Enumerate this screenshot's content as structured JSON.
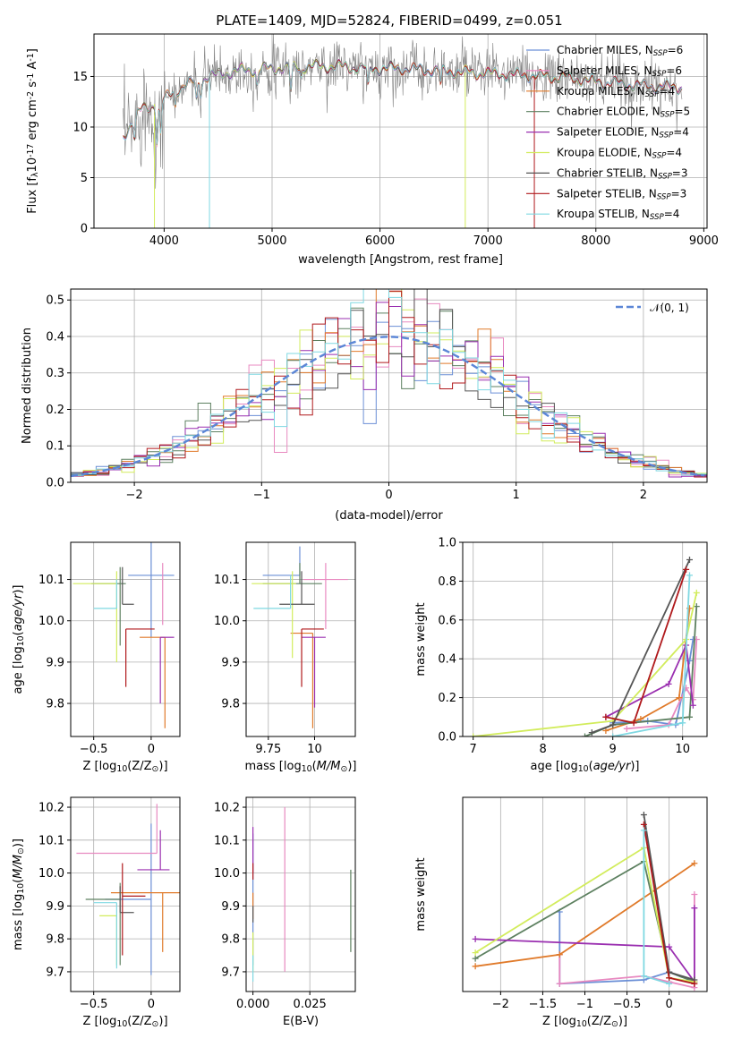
{
  "title": "PLATE=1409, MJD=52824, FIBERID=0499, z=0.051",
  "series": [
    {
      "name": "Chabrier MILES, N$_{SSP}$=6",
      "color": "#6b8fd6"
    },
    {
      "name": "Salpeter MILES, N$_{SSP}$=6",
      "color": "#e889c0"
    },
    {
      "name": "Kroupa MILES, N$_{SSP}$=4",
      "color": "#e07a2a"
    },
    {
      "name": "Chabrier ELODIE, N$_{SSP}$=5",
      "color": "#5d8060"
    },
    {
      "name": "Salpeter ELODIE, N$_{SSP}$=4",
      "color": "#9a2fb0"
    },
    {
      "name": "Kroupa ELODIE, N$_{SSP}$=4",
      "color": "#d2ec5c"
    },
    {
      "name": "Chabrier STELIB, N$_{SSP}$=3",
      "color": "#555555"
    },
    {
      "name": "Salpeter STELIB, N$_{SSP}$=3",
      "color": "#b0191c"
    },
    {
      "name": "Kroupa STELIB, N$_{SSP}$=4",
      "color": "#7fd8e2"
    }
  ],
  "chart_data": [
    {
      "id": "spectrum",
      "type": "line",
      "xlabel": "wavelength [Angstrom, rest frame]",
      "ylabel": "Flux [f$_\\lambda$10$^{-17}$ erg cm$^{-2}$ s$^{-1}$ A$^{-1}$]",
      "xlim": [
        3350,
        9030
      ],
      "ylim": [
        0,
        19.2
      ],
      "xticks": [
        4000,
        5000,
        6000,
        7000,
        8000,
        9000
      ],
      "yticks": [
        0,
        5,
        10,
        15
      ],
      "data_color": "#808080",
      "continuum_knots": [
        [
          3620,
          9
        ],
        [
          3700,
          10.5
        ],
        [
          3800,
          11.8
        ],
        [
          3900,
          12.2
        ],
        [
          4000,
          12.8
        ],
        [
          4100,
          13.6
        ],
        [
          4300,
          14.6
        ],
        [
          4500,
          15.2
        ],
        [
          4700,
          15.6
        ],
        [
          5000,
          15.8
        ],
        [
          5300,
          16.0
        ],
        [
          5600,
          16.0
        ],
        [
          5900,
          15.8
        ],
        [
          6200,
          15.8
        ],
        [
          6500,
          15.6
        ],
        [
          6800,
          15.4
        ],
        [
          7000,
          15.3
        ],
        [
          7400,
          15.1
        ],
        [
          7700,
          14.9
        ],
        [
          8000,
          14.5
        ],
        [
          8300,
          14.2
        ],
        [
          8600,
          14.0
        ],
        [
          8800,
          13.9
        ]
      ]
    },
    {
      "id": "residuals",
      "type": "histogram",
      "xlabel": "(data-model)/error",
      "ylabel": "Normed distribution",
      "xlim": [
        -2.5,
        2.5
      ],
      "ylim": [
        0,
        0.53
      ],
      "xticks": [
        -2,
        -1,
        0,
        1,
        2
      ],
      "yticks": [
        0.0,
        0.1,
        0.2,
        0.3,
        0.4,
        0.5
      ],
      "legend": "$\\mathcal{N}(0,1)$",
      "bin_width": 0.1,
      "model_color": "#5b86d6"
    },
    {
      "id": "age_vs_Z",
      "type": "scatter",
      "xlabel": "Z [log$_{10}$(Z/Z$_\\odot$)]",
      "ylabel": "age  [log$_{10}$($age/yr$)]",
      "xlim": [
        -0.7,
        0.25
      ],
      "ylim": [
        9.72,
        10.19
      ],
      "xticks": [
        -0.5,
        0.0
      ],
      "yticks": [
        9.8,
        9.9,
        10.0,
        10.1
      ],
      "points": [
        {
          "x": 0.0,
          "y": 10.11,
          "xerr": [
            0.2,
            0.2
          ],
          "yerr": [
            0.15,
            0.08
          ]
        },
        {
          "x": 0.1,
          "y": 10.09,
          "xerr": [
            0.0,
            0.0
          ],
          "yerr": [
            0.1,
            0.05
          ]
        },
        {
          "x": 0.12,
          "y": 9.96,
          "xerr": [
            0.22,
            0.0
          ],
          "yerr": [
            0.22,
            0.0
          ]
        },
        {
          "x": -0.27,
          "y": 10.09,
          "xerr": [
            0.25,
            0.05
          ],
          "yerr": [
            0.15,
            0.04
          ]
        },
        {
          "x": 0.08,
          "y": 9.96,
          "xerr": [
            0.0,
            0.12
          ],
          "yerr": [
            0.16,
            0.0
          ]
        },
        {
          "x": -0.3,
          "y": 10.09,
          "xerr": [
            0.38,
            0.0
          ],
          "yerr": [
            0.19,
            0.03
          ]
        },
        {
          "x": -0.25,
          "y": 10.04,
          "xerr": [
            0.0,
            0.1
          ],
          "yerr": [
            0.0,
            0.09
          ]
        },
        {
          "x": -0.22,
          "y": 9.98,
          "xerr": [
            0.0,
            0.25
          ],
          "yerr": [
            0.14,
            0.0
          ]
        },
        {
          "x": -0.3,
          "y": 10.03,
          "xerr": [
            0.2,
            0.0
          ],
          "yerr": [
            0.0,
            0.07
          ]
        }
      ]
    },
    {
      "id": "age_vs_mass",
      "type": "scatter",
      "xlabel": "mass [log$_{10}$($M/M_\\odot$)]",
      "ylabel": "",
      "xlim": [
        9.63,
        10.22
      ],
      "ylim": [
        9.72,
        10.19
      ],
      "xticks": [
        9.75,
        10.0
      ],
      "yticks": [
        9.8,
        9.9,
        10.0,
        10.1
      ],
      "points": [
        {
          "x": 9.92,
          "y": 10.11,
          "xerr": [
            0.2,
            0.0
          ],
          "yerr": [
            0.0,
            0.07
          ]
        },
        {
          "x": 10.06,
          "y": 10.1,
          "xerr": [
            0.12,
            0.12
          ],
          "yerr": [
            0.12,
            0.04
          ]
        },
        {
          "x": 9.99,
          "y": 9.97,
          "xerr": [
            0.12,
            0.0
          ],
          "yerr": [
            0.23,
            0.0
          ]
        },
        {
          "x": 9.92,
          "y": 10.09,
          "xerr": [
            0.2,
            0.12
          ],
          "yerr": [
            0.0,
            0.05
          ]
        },
        {
          "x": 10.0,
          "y": 9.96,
          "xerr": [
            0.07,
            0.06
          ],
          "yerr": [
            0.17,
            0.0
          ]
        },
        {
          "x": 9.88,
          "y": 10.09,
          "xerr": [
            0.22,
            0.02
          ],
          "yerr": [
            0.18,
            0.03
          ]
        },
        {
          "x": 9.93,
          "y": 10.04,
          "xerr": [
            0.12,
            0.07
          ],
          "yerr": [
            0.0,
            0.08
          ]
        },
        {
          "x": 9.93,
          "y": 9.98,
          "xerr": [
            0.0,
            0.12
          ],
          "yerr": [
            0.14,
            0.0
          ]
        },
        {
          "x": 9.87,
          "y": 10.03,
          "xerr": [
            0.2,
            0.0
          ],
          "yerr": [
            0.0,
            0.08
          ]
        }
      ]
    },
    {
      "id": "weight_vs_age",
      "type": "line",
      "xlabel": "age  [log$_{10}$($age/yr$)]",
      "ylabel": "mass weight",
      "xlim": [
        6.85,
        10.35
      ],
      "ylim": [
        0,
        1.0
      ],
      "xticks": [
        7,
        8,
        9,
        10
      ],
      "yticks": [
        0.0,
        0.2,
        0.4,
        0.6,
        0.8,
        1.0
      ],
      "series": [
        [
          [
            9.0,
            0.07
          ],
          [
            9.5,
            0.08
          ],
          [
            9.9,
            0.06
          ],
          [
            10.1,
            0.39
          ],
          [
            10.15,
            0.5
          ]
        ],
        [
          [
            9.2,
            0.04
          ],
          [
            9.8,
            0.06
          ],
          [
            10.05,
            0.25
          ],
          [
            10.15,
            0.19
          ],
          [
            10.2,
            0.5
          ]
        ],
        [
          [
            8.9,
            0.03
          ],
          [
            9.4,
            0.09
          ],
          [
            9.95,
            0.2
          ],
          [
            10.1,
            0.66
          ]
        ],
        [
          [
            8.6,
            0.0
          ],
          [
            9.0,
            0.06
          ],
          [
            10.1,
            0.1
          ],
          [
            10.2,
            0.67
          ]
        ],
        [
          [
            8.9,
            0.1
          ],
          [
            9.8,
            0.27
          ],
          [
            10.05,
            0.47
          ],
          [
            10.15,
            0.16
          ]
        ],
        [
          [
            7.0,
            0.0
          ],
          [
            9.0,
            0.08
          ],
          [
            10.05,
            0.5
          ],
          [
            10.2,
            0.74
          ]
        ],
        [
          [
            8.7,
            0.02
          ],
          [
            9.0,
            0.06
          ],
          [
            10.1,
            0.91
          ]
        ],
        [
          [
            8.9,
            0.1
          ],
          [
            9.3,
            0.07
          ],
          [
            10.05,
            0.86
          ]
        ],
        [
          [
            9.0,
            0.0
          ],
          [
            10.0,
            0.07
          ],
          [
            10.1,
            0.83
          ]
        ]
      ]
    },
    {
      "id": "mass_vs_Z",
      "type": "scatter",
      "xlabel": "Z [log$_{10}$(Z/Z$_\\odot$)]",
      "ylabel": "mass [log$_{10}$($M/M_\\odot$)]",
      "xlim": [
        -0.7,
        0.25
      ],
      "ylim": [
        9.64,
        10.23
      ],
      "xticks": [
        -0.5,
        0.0
      ],
      "yticks": [
        9.7,
        9.8,
        9.9,
        10.0,
        10.1,
        10.2
      ],
      "points": [
        {
          "x": 0.0,
          "y": 9.92,
          "xerr": [
            0.4,
            0.0
          ],
          "yerr": [
            0.23,
            0.23
          ]
        },
        {
          "x": 0.05,
          "y": 10.06,
          "xerr": [
            0.7,
            0.0
          ],
          "yerr": [
            0.0,
            0.15
          ]
        },
        {
          "x": 0.1,
          "y": 9.94,
          "xerr": [
            0.45,
            0.15
          ],
          "yerr": [
            0.18,
            0.0
          ]
        },
        {
          "x": -0.27,
          "y": 9.92,
          "xerr": [
            0.3,
            0.0
          ],
          "yerr": [
            0.2,
            0.05
          ]
        },
        {
          "x": 0.08,
          "y": 10.01,
          "xerr": [
            0.2,
            0.08
          ],
          "yerr": [
            0.0,
            0.12
          ]
        },
        {
          "x": -0.3,
          "y": 9.87,
          "xerr": [
            0.15,
            0.0
          ],
          "yerr": [
            0.15,
            0.0
          ]
        },
        {
          "x": -0.27,
          "y": 9.88,
          "xerr": [
            0.0,
            0.12
          ],
          "yerr": [
            0.0,
            0.08
          ]
        },
        {
          "x": -0.25,
          "y": 9.93,
          "xerr": [
            0.0,
            0.2
          ],
          "yerr": [
            0.18,
            0.1
          ]
        },
        {
          "x": -0.3,
          "y": 9.91,
          "xerr": [
            0.2,
            0.0
          ],
          "yerr": [
            0.2,
            0.0
          ]
        }
      ]
    },
    {
      "id": "mass_vs_ebv",
      "type": "scatter",
      "xlabel": "E(B-V)",
      "ylabel": "",
      "xlim": [
        -0.003,
        0.045
      ],
      "ylim": [
        9.64,
        10.23
      ],
      "xticks": [
        0.0,
        0.025
      ],
      "xticklabels": [
        "0.000",
        "0.025"
      ],
      "yticks": [
        9.7,
        9.8,
        9.9,
        10.0,
        10.1,
        10.2
      ],
      "points": [
        {
          "x": 0.0,
          "y": 9.92,
          "xerr": [
            0,
            0
          ],
          "yerr": [
            0.2,
            0.2
          ]
        },
        {
          "x": 0.014,
          "y": 9.9,
          "xerr": [
            0,
            0
          ],
          "yerr": [
            0.2,
            0.3
          ]
        },
        {
          "x": 0.0,
          "y": 9.86,
          "xerr": [
            0,
            0
          ],
          "yerr": [
            0.0,
            0.08
          ]
        },
        {
          "x": 0.043,
          "y": 9.88,
          "xerr": [
            0,
            0
          ],
          "yerr": [
            0.12,
            0.13
          ]
        },
        {
          "x": 0.0,
          "y": 10.0,
          "xerr": [
            0,
            0
          ],
          "yerr": [
            0.0,
            0.14
          ]
        },
        {
          "x": 0.0,
          "y": 9.82,
          "xerr": [
            0,
            0
          ],
          "yerr": [
            0.12,
            0.0
          ]
        },
        {
          "x": 0.0,
          "y": 9.9,
          "xerr": [
            0,
            0
          ],
          "yerr": [
            0.05,
            0.0
          ]
        },
        {
          "x": 0.0,
          "y": 9.98,
          "xerr": [
            0,
            0
          ],
          "yerr": [
            0.0,
            0.05
          ]
        },
        {
          "x": 0.0,
          "y": 9.75,
          "xerr": [
            0,
            0
          ],
          "yerr": [
            0.08,
            0.0
          ]
        }
      ]
    },
    {
      "id": "weight_vs_Z",
      "type": "line",
      "xlabel": "Z [log$_{10}$(Z/Z$_\\odot$)]",
      "ylabel": "mass weight",
      "xlim": [
        -2.45,
        0.45
      ],
      "ylim": [
        0,
        1.0
      ],
      "xticks": [
        -2.0,
        -1.5,
        -1.0,
        -0.5,
        0.0
      ],
      "series": [
        [
          [
            -1.3,
            0.41
          ],
          [
            -1.3,
            0.04
          ],
          [
            -0.3,
            0.06
          ],
          [
            0.0,
            0.1
          ],
          [
            0.3,
            0.05
          ]
        ],
        [
          [
            -1.3,
            0.19
          ],
          [
            -1.3,
            0.04
          ],
          [
            -0.3,
            0.08
          ],
          [
            0.0,
            0.05
          ],
          [
            0.3,
            0.02
          ],
          [
            0.3,
            0.5
          ]
        ],
        [
          [
            -2.3,
            0.13
          ],
          [
            -1.3,
            0.19
          ],
          [
            0.3,
            0.66
          ]
        ],
        [
          [
            -2.3,
            0.17
          ],
          [
            -0.3,
            0.67
          ],
          [
            0.0,
            0.1
          ],
          [
            0.3,
            0.05
          ]
        ],
        [
          [
            -2.3,
            0.27
          ],
          [
            0.0,
            0.23
          ],
          [
            0.3,
            0.05
          ],
          [
            0.3,
            0.43
          ]
        ],
        [
          [
            -2.3,
            0.2
          ],
          [
            -0.3,
            0.74
          ],
          [
            0.0,
            0.07
          ],
          [
            0.3,
            0.05
          ]
        ],
        [
          [
            -0.3,
            0.91
          ],
          [
            0.0,
            0.1
          ],
          [
            0.3,
            0.06
          ]
        ],
        [
          [
            -0.3,
            0.86
          ],
          [
            0.0,
            0.07
          ],
          [
            0.3,
            0.04
          ]
        ],
        [
          [
            -0.3,
            0.83
          ],
          [
            -0.3,
            0.08
          ],
          [
            0.0,
            0.04
          ]
        ]
      ]
    }
  ]
}
